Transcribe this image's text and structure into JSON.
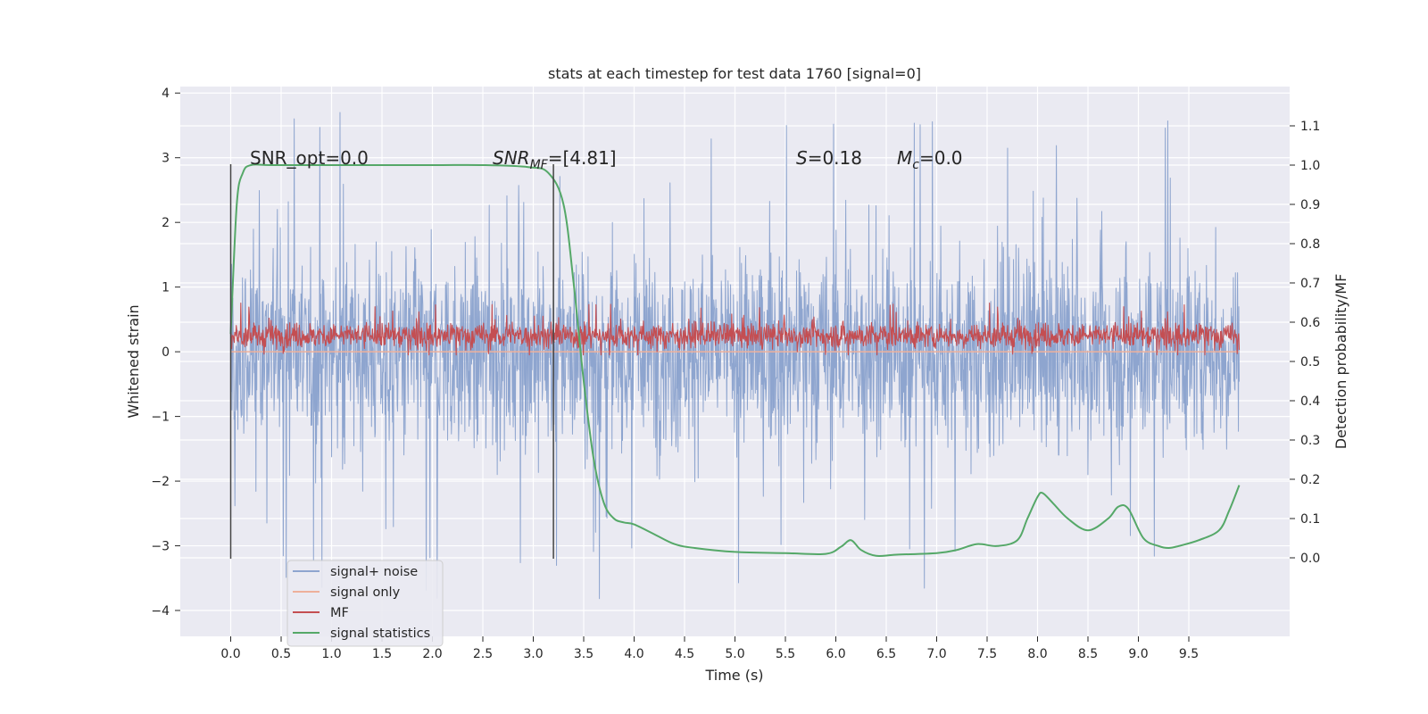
{
  "chart_data": {
    "type": "line",
    "title": "stats at each timestep for test data 1760 [signal=0]",
    "xlabel": "Time (s)",
    "ylabel": "Whitened strain",
    "y2label": "Detection probability/MF",
    "xlim": [
      -0.5,
      10.5
    ],
    "ylim": [
      -4.4,
      4.1
    ],
    "y2lim": [
      -0.2,
      1.2
    ],
    "xticks": [
      "0.0",
      "0.5",
      "1.0",
      "1.5",
      "2.0",
      "2.5",
      "3.0",
      "3.5",
      "4.0",
      "4.5",
      "5.0",
      "5.5",
      "6.0",
      "6.5",
      "7.0",
      "7.5",
      "8.0",
      "8.5",
      "9.0",
      "9.5"
    ],
    "yticks": [
      "4",
      "3",
      "2",
      "1",
      "0",
      "−1",
      "−2",
      "−3",
      "−4"
    ],
    "y2ticks": [
      "1.1",
      "1.0",
      "0.9",
      "0.8",
      "0.7",
      "0.6",
      "0.5",
      "0.4",
      "0.3",
      "0.2",
      "0.1",
      "0.0"
    ],
    "grid": true,
    "legend_position": "lower-left",
    "annotations": {
      "snr_opt": "SNR_opt=0.0",
      "snr_mf_sym": "SNR",
      "snr_mf_sub": "MF",
      "snr_mf_val": "=[4.81]",
      "s_sym": "S",
      "s_val": "=0.18",
      "mc_sym": "M",
      "mc_sub": "c",
      "mc_val": "=0.0"
    },
    "vlines": [
      0.0,
      3.2
    ],
    "series": [
      {
        "name": "signal+ noise",
        "color": "#8ea5cf",
        "style": "noise",
        "x_range": [
          0.0,
          10.0
        ],
        "typical_range": [
          -1.9,
          1.9
        ],
        "extreme_range": [
          -4.0,
          3.7
        ]
      },
      {
        "name": "signal only",
        "color": "#eeb09b",
        "x": [
          0.0,
          10.0
        ],
        "y": [
          0.0,
          0.0
        ]
      },
      {
        "name": "MF",
        "color": "#c44e52",
        "style": "noise",
        "x_range": [
          0.0,
          10.0
        ],
        "typical_range": [
          0.0,
          0.5
        ],
        "extreme_range": [
          -0.05,
          1.0
        ]
      },
      {
        "name": "signal statistics",
        "color": "#55a868",
        "axis": "right",
        "x": [
          0.0,
          0.06,
          0.12,
          0.2,
          0.4,
          1.0,
          2.0,
          2.5,
          2.95,
          3.15,
          3.3,
          3.4,
          3.5,
          3.6,
          3.7,
          3.8,
          3.9,
          4.0,
          4.2,
          4.4,
          4.6,
          5.0,
          5.5,
          5.9,
          6.05,
          6.15,
          6.25,
          6.4,
          6.6,
          7.0,
          7.2,
          7.4,
          7.6,
          7.8,
          7.9,
          8.0,
          8.05,
          8.15,
          8.3,
          8.5,
          8.7,
          8.8,
          8.9,
          9.05,
          9.2,
          9.3,
          9.4,
          9.6,
          9.8,
          9.9,
          10.0
        ],
        "y": [
          0.57,
          0.9,
          0.98,
          1.0,
          1.0,
          1.0,
          1.0,
          1.0,
          0.995,
          0.98,
          0.9,
          0.7,
          0.45,
          0.25,
          0.14,
          0.1,
          0.09,
          0.085,
          0.06,
          0.035,
          0.025,
          0.015,
          0.012,
          0.01,
          0.028,
          0.045,
          0.02,
          0.005,
          0.008,
          0.012,
          0.02,
          0.035,
          0.03,
          0.045,
          0.1,
          0.155,
          0.165,
          0.14,
          0.1,
          0.07,
          0.1,
          0.13,
          0.125,
          0.05,
          0.03,
          0.025,
          0.03,
          0.045,
          0.07,
          0.12,
          0.185
        ]
      }
    ]
  }
}
